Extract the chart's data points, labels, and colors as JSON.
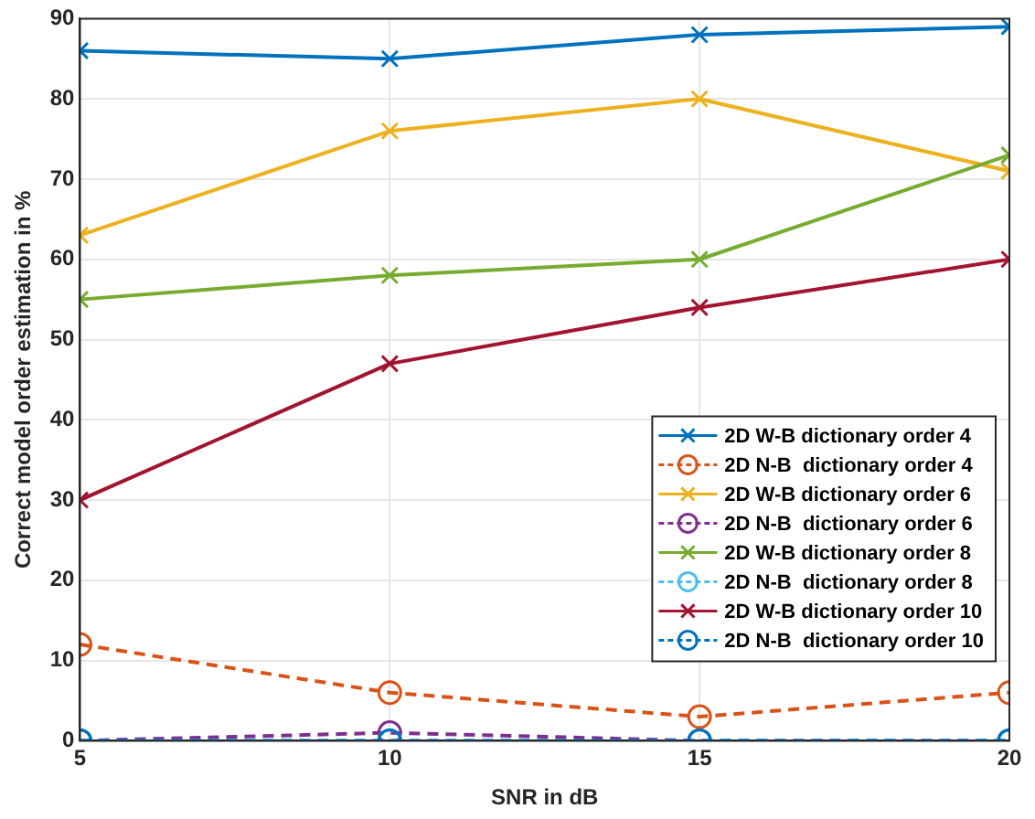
{
  "chart_data": {
    "type": "line",
    "xlabel": "SNR in dB",
    "ylabel": "Correct model order estimation in %",
    "x": [
      5,
      10,
      15,
      20
    ],
    "xlim": [
      5,
      20
    ],
    "xticks": [
      5,
      10,
      15,
      20
    ],
    "ylim": [
      0,
      90
    ],
    "yticks": [
      0,
      10,
      20,
      30,
      40,
      50,
      60,
      70,
      80,
      90
    ],
    "grid": true,
    "legend": "bottom right",
    "series": [
      {
        "name": "2D W-B dictionary order 4",
        "color": "#0072bd",
        "marker": "cross",
        "line_style": "solid",
        "values": [
          86,
          85,
          88,
          89
        ]
      },
      {
        "name": "2D N-B  dictionary order 4",
        "color": "#d95319",
        "marker": "circle",
        "line_style": "dashed",
        "values": [
          12,
          6,
          3,
          6
        ]
      },
      {
        "name": "2D W-B dictionary order 6",
        "color": "#edb120",
        "marker": "cross",
        "line_style": "solid",
        "values": [
          63,
          76,
          80,
          71
        ]
      },
      {
        "name": "2D N-B  dictionary order 6",
        "color": "#7e2f8e",
        "marker": "circle",
        "line_style": "dashed",
        "values": [
          0,
          1,
          0,
          0
        ]
      },
      {
        "name": "2D W-B dictionary order 8",
        "color": "#77ac30",
        "marker": "cross",
        "line_style": "solid",
        "values": [
          55,
          58,
          60,
          73
        ]
      },
      {
        "name": "2D N-B  dictionary order 8",
        "color": "#4dbeee",
        "marker": "circle",
        "line_style": "dashed",
        "values": [
          0,
          0,
          0,
          0
        ]
      },
      {
        "name": "2D W-B dictionary order 10",
        "color": "#a2142f",
        "marker": "cross",
        "line_style": "solid",
        "values": [
          30,
          47,
          54,
          60
        ]
      },
      {
        "name": "2D N-B  dictionary order 10",
        "color": "#0072bd",
        "marker": "circle",
        "line_style": "dashed",
        "values": [
          0,
          0,
          0,
          0
        ]
      }
    ]
  }
}
